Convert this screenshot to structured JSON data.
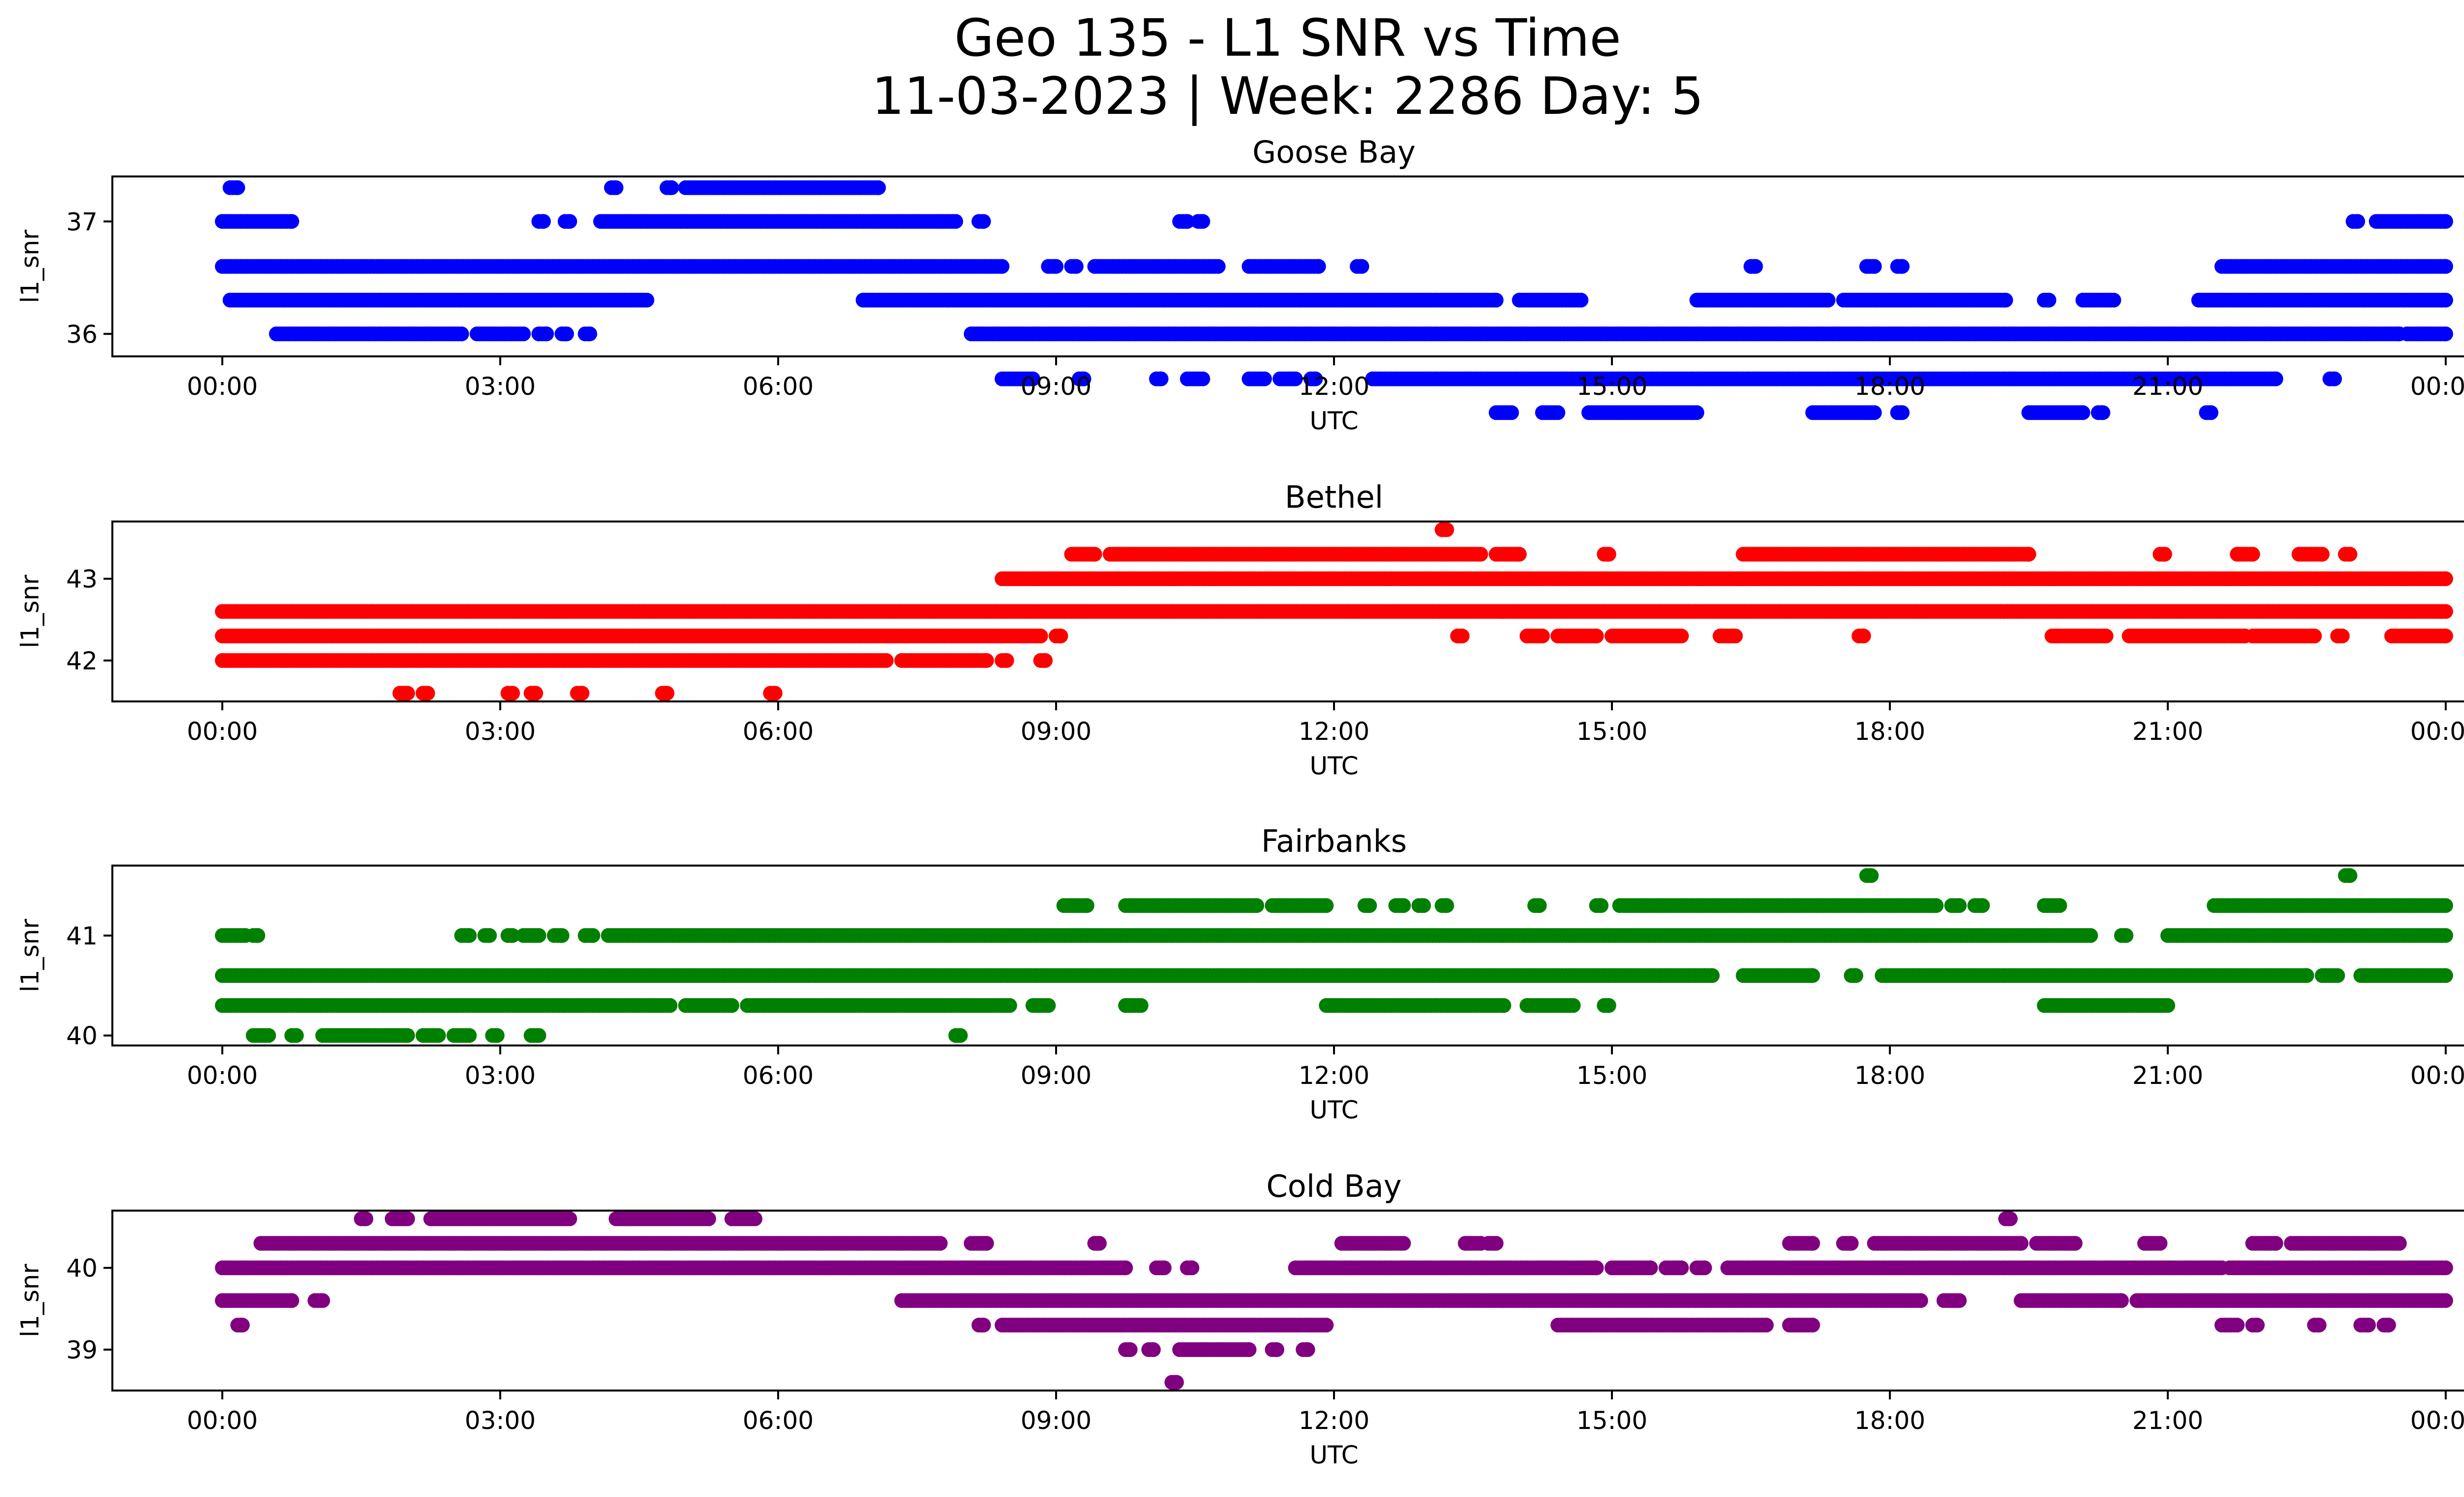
{
  "figure": {
    "title_line1": "Geo 135 - L1 SNR vs Time",
    "title_line2": "11-03-2023 | Week: 2286 Day: 5"
  },
  "chart_data": [
    {
      "type": "scatter",
      "title": "Goose Bay",
      "xlabel": "UTC",
      "ylabel": "l1_snr",
      "color": "#0000ff",
      "xlim": [
        "2023-11-03 00:00",
        "2023-11-04 00:00"
      ],
      "ylim": [
        35.8,
        37.4
      ],
      "xticks": [
        "00:00",
        "03:00",
        "06:00",
        "09:00",
        "12:00",
        "15:00",
        "18:00",
        "21:00",
        "00:00"
      ],
      "yticks": [
        36,
        37
      ],
      "grid": false,
      "bands": [
        {
          "y": 37.3,
          "segments": [
            [
              "00:05",
              "00:10"
            ],
            [
              "04:12",
              "04:15"
            ],
            [
              "04:48",
              "04:51"
            ],
            [
              "05:00",
              "07:05"
            ]
          ]
        },
        {
          "y": 37.0,
          "segments": [
            [
              "00:00",
              "00:45"
            ],
            [
              "03:25",
              "03:28"
            ],
            [
              "03:42",
              "03:45"
            ],
            [
              "04:05",
              "07:55"
            ],
            [
              "08:10",
              "08:13"
            ],
            [
              "10:20",
              "10:25"
            ],
            [
              "10:32",
              "10:35"
            ],
            [
              "23:00",
              "23:03"
            ],
            [
              "23:15",
              "24:00"
            ]
          ]
        },
        {
          "y": 36.6,
          "segments": [
            [
              "00:00",
              "08:25"
            ],
            [
              "08:55",
              "09:00"
            ],
            [
              "09:10",
              "09:13"
            ],
            [
              "09:25",
              "10:45"
            ],
            [
              "11:05",
              "11:50"
            ],
            [
              "12:15",
              "12:18"
            ],
            [
              "16:30",
              "16:33"
            ],
            [
              "17:45",
              "17:50"
            ],
            [
              "18:05",
              "18:08"
            ],
            [
              "21:35",
              "24:00"
            ]
          ]
        },
        {
          "y": 36.3,
          "segments": [
            [
              "00:05",
              "04:35"
            ],
            [
              "06:55",
              "13:45"
            ],
            [
              "14:00",
              "14:40"
            ],
            [
              "15:55",
              "17:20"
            ],
            [
              "17:30",
              "19:15"
            ],
            [
              "19:40",
              "19:43"
            ],
            [
              "20:05",
              "20:25"
            ],
            [
              "21:20",
              "24:00"
            ]
          ]
        },
        {
          "y": 36.0,
          "segments": [
            [
              "00:35",
              "02:35"
            ],
            [
              "02:45",
              "03:15"
            ],
            [
              "03:25",
              "03:30"
            ],
            [
              "03:40",
              "03:43"
            ],
            [
              "03:55",
              "03:58"
            ],
            [
              "08:05",
              "23:30"
            ],
            [
              "23:35",
              "24:00"
            ]
          ]
        },
        {
          "y": 35.6,
          "segments": [
            [
              "08:25",
              "08:45"
            ],
            [
              "09:15",
              "09:18"
            ],
            [
              "10:05",
              "10:08"
            ],
            [
              "10:25",
              "10:35"
            ],
            [
              "11:05",
              "11:15"
            ],
            [
              "11:25",
              "11:35"
            ],
            [
              "11:45",
              "11:48"
            ],
            [
              "12:25",
              "22:10"
            ],
            [
              "22:45",
              "22:48"
            ]
          ]
        },
        {
          "y": 35.3,
          "segments": [
            [
              "13:45",
              "13:55"
            ],
            [
              "14:15",
              "14:25"
            ],
            [
              "14:45",
              "15:55"
            ],
            [
              "17:10",
              "17:50"
            ],
            [
              "18:05",
              "18:08"
            ],
            [
              "19:30",
              "20:05"
            ],
            [
              "20:15",
              "20:18"
            ],
            [
              "21:25",
              "21:28"
            ]
          ]
        }
      ]
    },
    {
      "type": "scatter",
      "title": "Bethel",
      "xlabel": "UTC",
      "ylabel": "l1_snr",
      "color": "#ff0000",
      "xlim": [
        "2023-11-03 00:00",
        "2023-11-04 00:00"
      ],
      "ylim": [
        41.5,
        43.7
      ],
      "xticks": [
        "00:00",
        "03:00",
        "06:00",
        "09:00",
        "12:00",
        "15:00",
        "18:00",
        "21:00",
        "00:00"
      ],
      "yticks": [
        42,
        43
      ],
      "grid": false,
      "bands": [
        {
          "y": 43.6,
          "segments": [
            [
              "13:10",
              "13:13"
            ]
          ]
        },
        {
          "y": 43.3,
          "segments": [
            [
              "09:10",
              "09:25"
            ],
            [
              "09:35",
              "13:35"
            ],
            [
              "13:45",
              "14:00"
            ],
            [
              "14:55",
              "14:58"
            ],
            [
              "16:25",
              "19:30"
            ],
            [
              "20:55",
              "20:58"
            ],
            [
              "21:45",
              "21:55"
            ],
            [
              "22:25",
              "22:40"
            ],
            [
              "22:55",
              "22:58"
            ]
          ]
        },
        {
          "y": 43.0,
          "segments": [
            [
              "08:25",
              "24:00"
            ]
          ]
        },
        {
          "y": 42.6,
          "segments": [
            [
              "00:00",
              "24:00"
            ]
          ]
        },
        {
          "y": 42.3,
          "segments": [
            [
              "00:00",
              "08:50"
            ],
            [
              "09:00",
              "09:03"
            ],
            [
              "13:20",
              "13:23"
            ],
            [
              "14:05",
              "14:15"
            ],
            [
              "14:25",
              "14:50"
            ],
            [
              "15:00",
              "15:45"
            ],
            [
              "16:10",
              "16:20"
            ],
            [
              "17:40",
              "17:43"
            ],
            [
              "19:45",
              "20:20"
            ],
            [
              "20:35",
              "21:50"
            ],
            [
              "21:55",
              "22:35"
            ],
            [
              "22:50",
              "22:53"
            ],
            [
              "23:25",
              "24:00"
            ]
          ]
        },
        {
          "y": 42.0,
          "segments": [
            [
              "00:00",
              "07:10"
            ],
            [
              "07:20",
              "08:15"
            ],
            [
              "08:25",
              "08:28"
            ],
            [
              "08:50",
              "08:53"
            ]
          ]
        },
        {
          "y": 41.6,
          "segments": [
            [
              "01:55",
              "02:00"
            ],
            [
              "02:10",
              "02:13"
            ],
            [
              "03:05",
              "03:08"
            ],
            [
              "03:20",
              "03:23"
            ],
            [
              "03:50",
              "03:53"
            ],
            [
              "04:45",
              "04:48"
            ],
            [
              "05:55",
              "05:58"
            ]
          ]
        }
      ]
    },
    {
      "type": "scatter",
      "title": "Fairbanks",
      "xlabel": "UTC",
      "ylabel": "l1_snr",
      "color": "#008000",
      "xlim": [
        "2023-11-03 00:00",
        "2023-11-04 00:00"
      ],
      "ylim": [
        39.9,
        41.7
      ],
      "xticks": [
        "00:00",
        "03:00",
        "06:00",
        "09:00",
        "12:00",
        "15:00",
        "18:00",
        "21:00",
        "00:00"
      ],
      "yticks": [
        40,
        41
      ],
      "grid": false,
      "bands": [
        {
          "y": 41.6,
          "segments": [
            [
              "17:45",
              "17:48"
            ],
            [
              "22:55",
              "22:58"
            ]
          ]
        },
        {
          "y": 41.3,
          "segments": [
            [
              "09:05",
              "09:20"
            ],
            [
              "09:45",
              "11:10"
            ],
            [
              "11:20",
              "11:55"
            ],
            [
              "12:20",
              "12:23"
            ],
            [
              "12:40",
              "12:45"
            ],
            [
              "12:55",
              "12:58"
            ],
            [
              "13:10",
              "13:13"
            ],
            [
              "14:10",
              "14:13"
            ],
            [
              "14:50",
              "14:53"
            ],
            [
              "15:05",
              "18:30"
            ],
            [
              "18:40",
              "18:45"
            ],
            [
              "18:55",
              "19:00"
            ],
            [
              "19:40",
              "19:50"
            ],
            [
              "21:30",
              "24:00"
            ]
          ]
        },
        {
          "y": 41.0,
          "segments": [
            [
              "00:00",
              "00:15"
            ],
            [
              "00:20",
              "00:23"
            ],
            [
              "02:35",
              "02:40"
            ],
            [
              "02:50",
              "02:53"
            ],
            [
              "03:05",
              "03:08"
            ],
            [
              "03:15",
              "03:25"
            ],
            [
              "03:35",
              "03:40"
            ],
            [
              "03:55",
              "04:00"
            ],
            [
              "04:10",
              "20:10"
            ],
            [
              "20:30",
              "20:33"
            ],
            [
              "21:00",
              "24:00"
            ]
          ]
        },
        {
          "y": 40.6,
          "segments": [
            [
              "00:00",
              "16:05"
            ],
            [
              "16:25",
              "17:10"
            ],
            [
              "17:35",
              "17:38"
            ],
            [
              "17:55",
              "22:30"
            ],
            [
              "22:40",
              "22:50"
            ],
            [
              "23:05",
              "24:00"
            ]
          ]
        },
        {
          "y": 40.3,
          "segments": [
            [
              "00:00",
              "04:50"
            ],
            [
              "05:00",
              "05:30"
            ],
            [
              "05:40",
              "08:30"
            ],
            [
              "08:45",
              "08:55"
            ],
            [
              "09:45",
              "09:55"
            ],
            [
              "11:55",
              "13:50"
            ],
            [
              "14:05",
              "14:35"
            ],
            [
              "14:55",
              "14:58"
            ],
            [
              "19:40",
              "21:00"
            ]
          ]
        },
        {
          "y": 40.0,
          "segments": [
            [
              "00:20",
              "00:30"
            ],
            [
              "00:45",
              "00:48"
            ],
            [
              "01:05",
              "02:00"
            ],
            [
              "02:10",
              "02:20"
            ],
            [
              "02:30",
              "02:40"
            ],
            [
              "02:55",
              "02:58"
            ],
            [
              "03:20",
              "03:25"
            ],
            [
              "07:55",
              "07:58"
            ]
          ]
        }
      ]
    },
    {
      "type": "scatter",
      "title": "Cold Bay",
      "xlabel": "UTC",
      "ylabel": "l1_snr",
      "color": "#800080",
      "xlim": [
        "2023-11-03 00:00",
        "2023-11-04 00:00"
      ],
      "ylim": [
        38.5,
        40.7
      ],
      "xticks": [
        "00:00",
        "03:00",
        "06:00",
        "09:00",
        "12:00",
        "15:00",
        "18:00",
        "21:00",
        "00:00"
      ],
      "yticks": [
        39,
        40
      ],
      "grid": false,
      "bands": [
        {
          "y": 40.6,
          "segments": [
            [
              "01:30",
              "01:33"
            ],
            [
              "01:50",
              "02:00"
            ],
            [
              "02:15",
              "03:45"
            ],
            [
              "04:15",
              "05:15"
            ],
            [
              "05:30",
              "05:45"
            ],
            [
              "19:15",
              "19:18"
            ]
          ]
        },
        {
          "y": 40.3,
          "segments": [
            [
              "00:25",
              "07:45"
            ],
            [
              "08:05",
              "08:15"
            ],
            [
              "09:25",
              "09:28"
            ],
            [
              "12:05",
              "12:45"
            ],
            [
              "13:25",
              "13:35"
            ],
            [
              "13:40",
              "13:45"
            ],
            [
              "16:55",
              "17:10"
            ],
            [
              "17:30",
              "17:35"
            ],
            [
              "17:50",
              "19:25"
            ],
            [
              "19:35",
              "20:00"
            ],
            [
              "20:45",
              "20:55"
            ],
            [
              "21:55",
              "22:10"
            ],
            [
              "22:20",
              "23:30"
            ]
          ]
        },
        {
          "y": 40.0,
          "segments": [
            [
              "00:00",
              "09:45"
            ],
            [
              "10:05",
              "10:10"
            ],
            [
              "10:25",
              "10:28"
            ],
            [
              "11:35",
              "14:50"
            ],
            [
              "15:00",
              "15:25"
            ],
            [
              "15:35",
              "15:45"
            ],
            [
              "15:55",
              "16:00"
            ],
            [
              "16:15",
              "21:35"
            ],
            [
              "21:40",
              "24:00"
            ]
          ]
        },
        {
          "y": 39.6,
          "segments": [
            [
              "00:00",
              "00:45"
            ],
            [
              "01:00",
              "01:05"
            ],
            [
              "07:20",
              "18:20"
            ],
            [
              "18:35",
              "18:45"
            ],
            [
              "19:25",
              "20:30"
            ],
            [
              "20:40",
              "24:00"
            ]
          ]
        },
        {
          "y": 39.3,
          "segments": [
            [
              "00:10",
              "00:13"
            ],
            [
              "08:10",
              "08:13"
            ],
            [
              "08:25",
              "11:55"
            ],
            [
              "14:25",
              "16:40"
            ],
            [
              "16:55",
              "17:10"
            ],
            [
              "21:35",
              "21:45"
            ],
            [
              "21:55",
              "21:58"
            ],
            [
              "22:35",
              "22:38"
            ],
            [
              "23:05",
              "23:10"
            ],
            [
              "23:20",
              "23:23"
            ]
          ]
        },
        {
          "y": 39.0,
          "segments": [
            [
              "09:45",
              "09:48"
            ],
            [
              "10:00",
              "10:03"
            ],
            [
              "10:20",
              "11:05"
            ],
            [
              "11:20",
              "11:23"
            ],
            [
              "11:40",
              "11:43"
            ]
          ]
        },
        {
          "y": 38.6,
          "segments": [
            [
              "10:15",
              "10:18"
            ]
          ]
        }
      ]
    }
  ]
}
